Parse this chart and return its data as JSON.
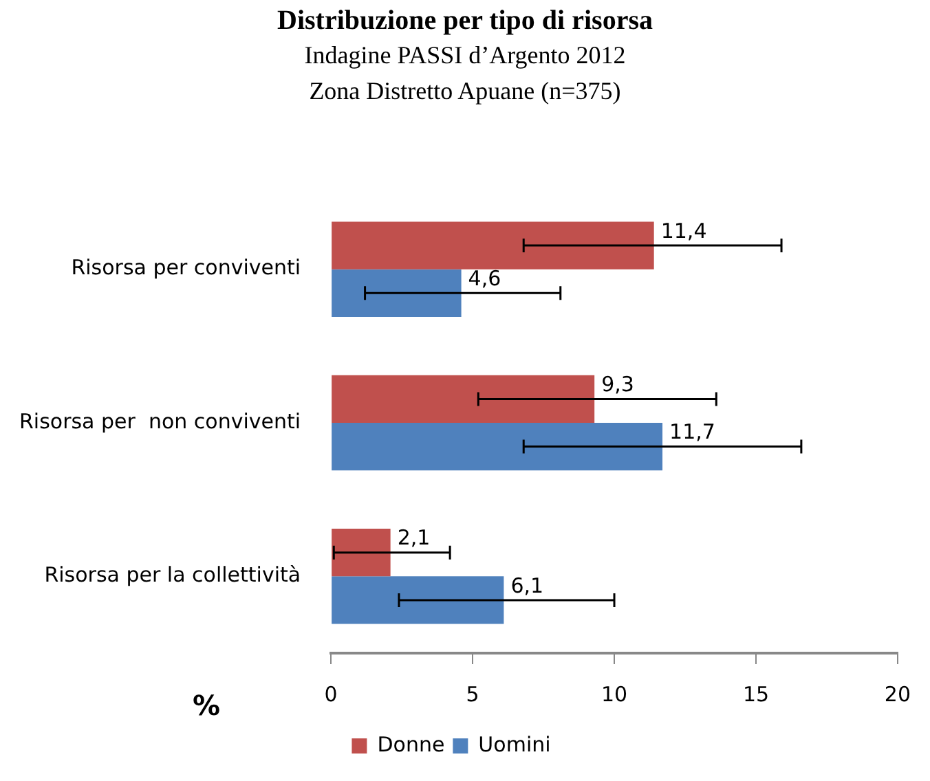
{
  "chart_data": {
    "type": "bar",
    "orientation": "horizontal",
    "title": "Distribuzione per tipo di risorsa",
    "subtitle": "Indagine PASSI d’Argento 2012\nZona Distretto Apuane (n=375)",
    "xlabel": "%",
    "categories": [
      "Risorsa per conviventi",
      "Risorsa per  non conviventi",
      "Risorsa per la collettività"
    ],
    "series": [
      {
        "name": "Donne",
        "color": "#c0504d",
        "values": [
          11.4,
          9.3,
          2.1
        ],
        "value_labels": [
          "11,4",
          "9,3",
          "2,1"
        ],
        "errors": [
          [
            6.8,
            15.9
          ],
          [
            5.2,
            13.6
          ],
          [
            0.1,
            4.2
          ]
        ]
      },
      {
        "name": "Uomini",
        "color": "#4f81bd",
        "values": [
          4.6,
          11.7,
          6.1
        ],
        "value_labels": [
          "4,6",
          "11,7",
          "6,1"
        ],
        "errors": [
          [
            1.2,
            8.1
          ],
          [
            6.8,
            16.6
          ],
          [
            2.4,
            10.0
          ]
        ]
      }
    ],
    "xlim": [
      0,
      20
    ],
    "xticks": [
      0,
      5,
      10,
      15,
      20
    ],
    "grid": false,
    "legend": "bottom"
  }
}
